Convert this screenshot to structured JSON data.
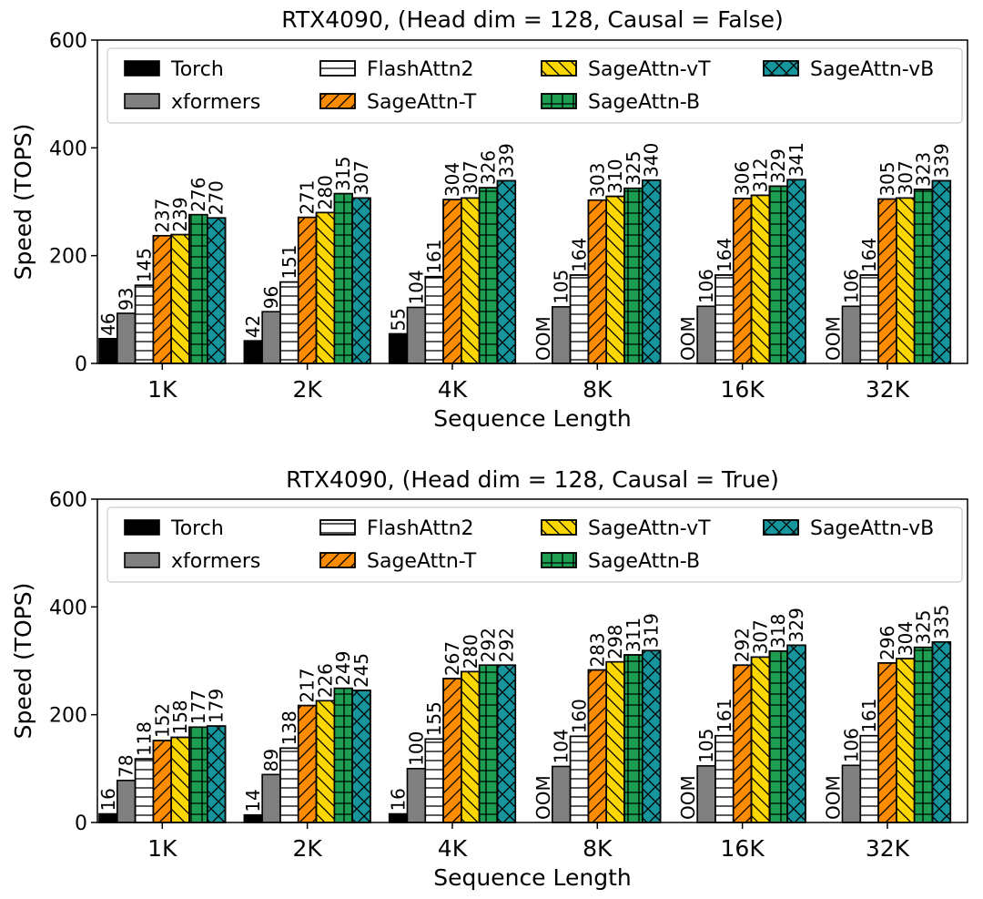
{
  "chart_data": [
    {
      "type": "bar",
      "title": "RTX4090, (Head dim = 128, Causal = False)",
      "xlabel": "Sequence Length",
      "ylabel": "Speed (TOPS)",
      "ylim": [
        0,
        600
      ],
      "yticks": [
        0,
        200,
        400,
        600
      ],
      "categories": [
        "1K",
        "2K",
        "4K",
        "8K",
        "16K",
        "32K"
      ],
      "legend_position": "top",
      "series": [
        {
          "name": "Torch",
          "values": [
            46,
            42,
            55,
            null,
            null,
            null
          ],
          "labels": [
            "46",
            "42",
            "55",
            "OOM",
            "OOM",
            "OOM"
          ]
        },
        {
          "name": "xformers",
          "values": [
            93,
            96,
            104,
            105,
            106,
            106
          ],
          "labels": [
            "93",
            "96",
            "104",
            "105",
            "106",
            "106"
          ]
        },
        {
          "name": "FlashAttn2",
          "values": [
            145,
            151,
            161,
            164,
            164,
            164
          ],
          "labels": [
            "145",
            "151",
            "161",
            "164",
            "164",
            "164"
          ]
        },
        {
          "name": "SageAttn-T",
          "values": [
            237,
            271,
            304,
            303,
            306,
            305
          ],
          "labels": [
            "237",
            "271",
            "304",
            "303",
            "306",
            "305"
          ]
        },
        {
          "name": "SageAttn-vT",
          "values": [
            239,
            280,
            307,
            310,
            312,
            307
          ],
          "labels": [
            "239",
            "280",
            "307",
            "310",
            "312",
            "307"
          ]
        },
        {
          "name": "SageAttn-B",
          "values": [
            276,
            315,
            326,
            325,
            329,
            323
          ],
          "labels": [
            "276",
            "315",
            "326",
            "325",
            "329",
            "323"
          ]
        },
        {
          "name": "SageAttn-vB",
          "values": [
            270,
            307,
            339,
            340,
            341,
            339
          ],
          "labels": [
            "270",
            "307",
            "339",
            "340",
            "341",
            "339"
          ]
        }
      ]
    },
    {
      "type": "bar",
      "title": "RTX4090, (Head dim = 128, Causal = True)",
      "xlabel": "Sequence Length",
      "ylabel": "Speed (TOPS)",
      "ylim": [
        0,
        600
      ],
      "yticks": [
        0,
        200,
        400,
        600
      ],
      "categories": [
        "1K",
        "2K",
        "4K",
        "8K",
        "16K",
        "32K"
      ],
      "legend_position": "top",
      "series": [
        {
          "name": "Torch",
          "values": [
            16,
            14,
            16,
            null,
            null,
            null
          ],
          "labels": [
            "16",
            "14",
            "16",
            "OOM",
            "OOM",
            "OOM"
          ]
        },
        {
          "name": "xformers",
          "values": [
            78,
            89,
            100,
            104,
            105,
            106
          ],
          "labels": [
            "78",
            "89",
            "100",
            "104",
            "105",
            "106"
          ]
        },
        {
          "name": "FlashAttn2",
          "values": [
            118,
            138,
            155,
            160,
            161,
            161
          ],
          "labels": [
            "118",
            "138",
            "155",
            "160",
            "161",
            "161"
          ]
        },
        {
          "name": "SageAttn-T",
          "values": [
            152,
            217,
            267,
            283,
            292,
            296
          ],
          "labels": [
            "152",
            "217",
            "267",
            "283",
            "292",
            "296"
          ]
        },
        {
          "name": "SageAttn-vT",
          "values": [
            158,
            226,
            280,
            298,
            307,
            304
          ],
          "labels": [
            "158",
            "226",
            "280",
            "298",
            "307",
            "304"
          ]
        },
        {
          "name": "SageAttn-B",
          "values": [
            177,
            249,
            292,
            311,
            318,
            325
          ],
          "labels": [
            "177",
            "249",
            "292",
            "311",
            "318",
            "325"
          ]
        },
        {
          "name": "SageAttn-vB",
          "values": [
            179,
            245,
            292,
            319,
            329,
            335
          ],
          "labels": [
            "179",
            "245",
            "292",
            "319",
            "329",
            "335"
          ]
        }
      ]
    }
  ],
  "series_style": {
    "Torch": {
      "color": "#000000",
      "hatch": "none"
    },
    "xformers": {
      "color": "#808080",
      "hatch": "none"
    },
    "FlashAttn2": {
      "color": "#ffffff",
      "hatch": "horizontal"
    },
    "SageAttn-T": {
      "color": "#ff8c00",
      "hatch": "forward-diagonal"
    },
    "SageAttn-vT": {
      "color": "#ffd700",
      "hatch": "back-diagonal"
    },
    "SageAttn-B": {
      "color": "#1e9e50",
      "hatch": "grid"
    },
    "SageAttn-vB": {
      "color": "#17949c",
      "hatch": "cross-diagonal"
    }
  }
}
